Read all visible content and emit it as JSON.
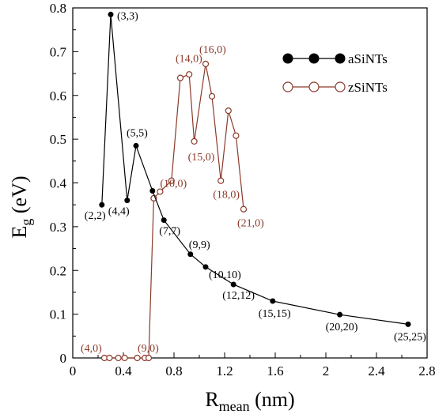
{
  "chart_data": {
    "type": "line",
    "ylabel_main": "E",
    "ylabel_sub": "g",
    "ylabel_unit": " (eV)",
    "xlabel_main": "R",
    "xlabel_sub": "mean",
    "xlabel_unit": " (nm)",
    "xlim": [
      0,
      2.8
    ],
    "ylim": [
      0,
      0.8
    ],
    "x_ticks": [
      "0",
      "0.4",
      "0.8",
      "1.2",
      "1.6",
      "2",
      "2.4",
      "2.8"
    ],
    "x_tick_values": [
      0,
      0.4,
      0.8,
      1.2,
      1.6,
      2.0,
      2.4,
      2.8
    ],
    "y_ticks": [
      "0",
      "0.1",
      "0.2",
      "0.3",
      "0.4",
      "0.5",
      "0.6",
      "0.7",
      "0.8"
    ],
    "y_tick_values": [
      0,
      0.1,
      0.2,
      0.3,
      0.4,
      0.5,
      0.6,
      0.7,
      0.8
    ],
    "legend_position": "top-right",
    "series": [
      {
        "name": "aSiNTs",
        "color": "#000000",
        "marker": "filled-circle",
        "x": [
          0.23,
          0.3,
          0.43,
          0.5,
          0.63,
          0.72,
          0.93,
          1.05,
          1.27,
          1.58,
          2.11,
          2.65
        ],
        "y": [
          0.35,
          0.785,
          0.36,
          0.485,
          0.382,
          0.315,
          0.237,
          0.208,
          0.168,
          0.13,
          0.099,
          0.077
        ]
      },
      {
        "name": "zSiNTs",
        "color": "#8B3A2A",
        "marker": "open-circle",
        "x": [
          0.25,
          0.29,
          0.36,
          0.41,
          0.51,
          0.57,
          0.6,
          0.64,
          0.69,
          0.78,
          0.85,
          0.92,
          0.96,
          1.05,
          1.1,
          1.17,
          1.23,
          1.29,
          1.35
        ],
        "y": [
          0,
          0,
          0,
          0,
          0,
          0,
          0,
          0.365,
          0.38,
          0.405,
          0.64,
          0.648,
          0.495,
          0.672,
          0.598,
          0.405,
          0.565,
          0.508,
          0.34
        ]
      }
    ],
    "annotations_a": [
      {
        "text": "(2,2)",
        "x": 0.23,
        "y": 0.35
      },
      {
        "text": "(3,3)",
        "x": 0.3,
        "y": 0.785
      },
      {
        "text": "(4,4)",
        "x": 0.43,
        "y": 0.36
      },
      {
        "text": "(5,5)",
        "x": 0.5,
        "y": 0.485
      },
      {
        "text": "(7,7)",
        "x": 0.72,
        "y": 0.315
      },
      {
        "text": "(9,9)",
        "x": 0.93,
        "y": 0.237
      },
      {
        "text": "(10,10)",
        "x": 1.05,
        "y": 0.208
      },
      {
        "text": "(12,12)",
        "x": 1.27,
        "y": 0.168
      },
      {
        "text": "(15,15)",
        "x": 1.58,
        "y": 0.13
      },
      {
        "text": "(20,20)",
        "x": 2.11,
        "y": 0.099
      },
      {
        "text": "(25,25)",
        "x": 2.65,
        "y": 0.077
      }
    ],
    "annotations_z": [
      {
        "text": "(4,0)",
        "x": 0.25,
        "y": 0
      },
      {
        "text": "(9,0)",
        "x": 0.6,
        "y": 0
      },
      {
        "text": "(10,0)",
        "x": 0.69,
        "y": 0.38
      },
      {
        "text": "(14,0)",
        "x": 0.85,
        "y": 0.64
      },
      {
        "text": "(15,0)",
        "x": 0.96,
        "y": 0.495
      },
      {
        "text": "(16,0)",
        "x": 1.05,
        "y": 0.672
      },
      {
        "text": "(18,0)",
        "x": 1.17,
        "y": 0.405
      },
      {
        "text": "(21,0)",
        "x": 1.35,
        "y": 0.34
      }
    ]
  }
}
